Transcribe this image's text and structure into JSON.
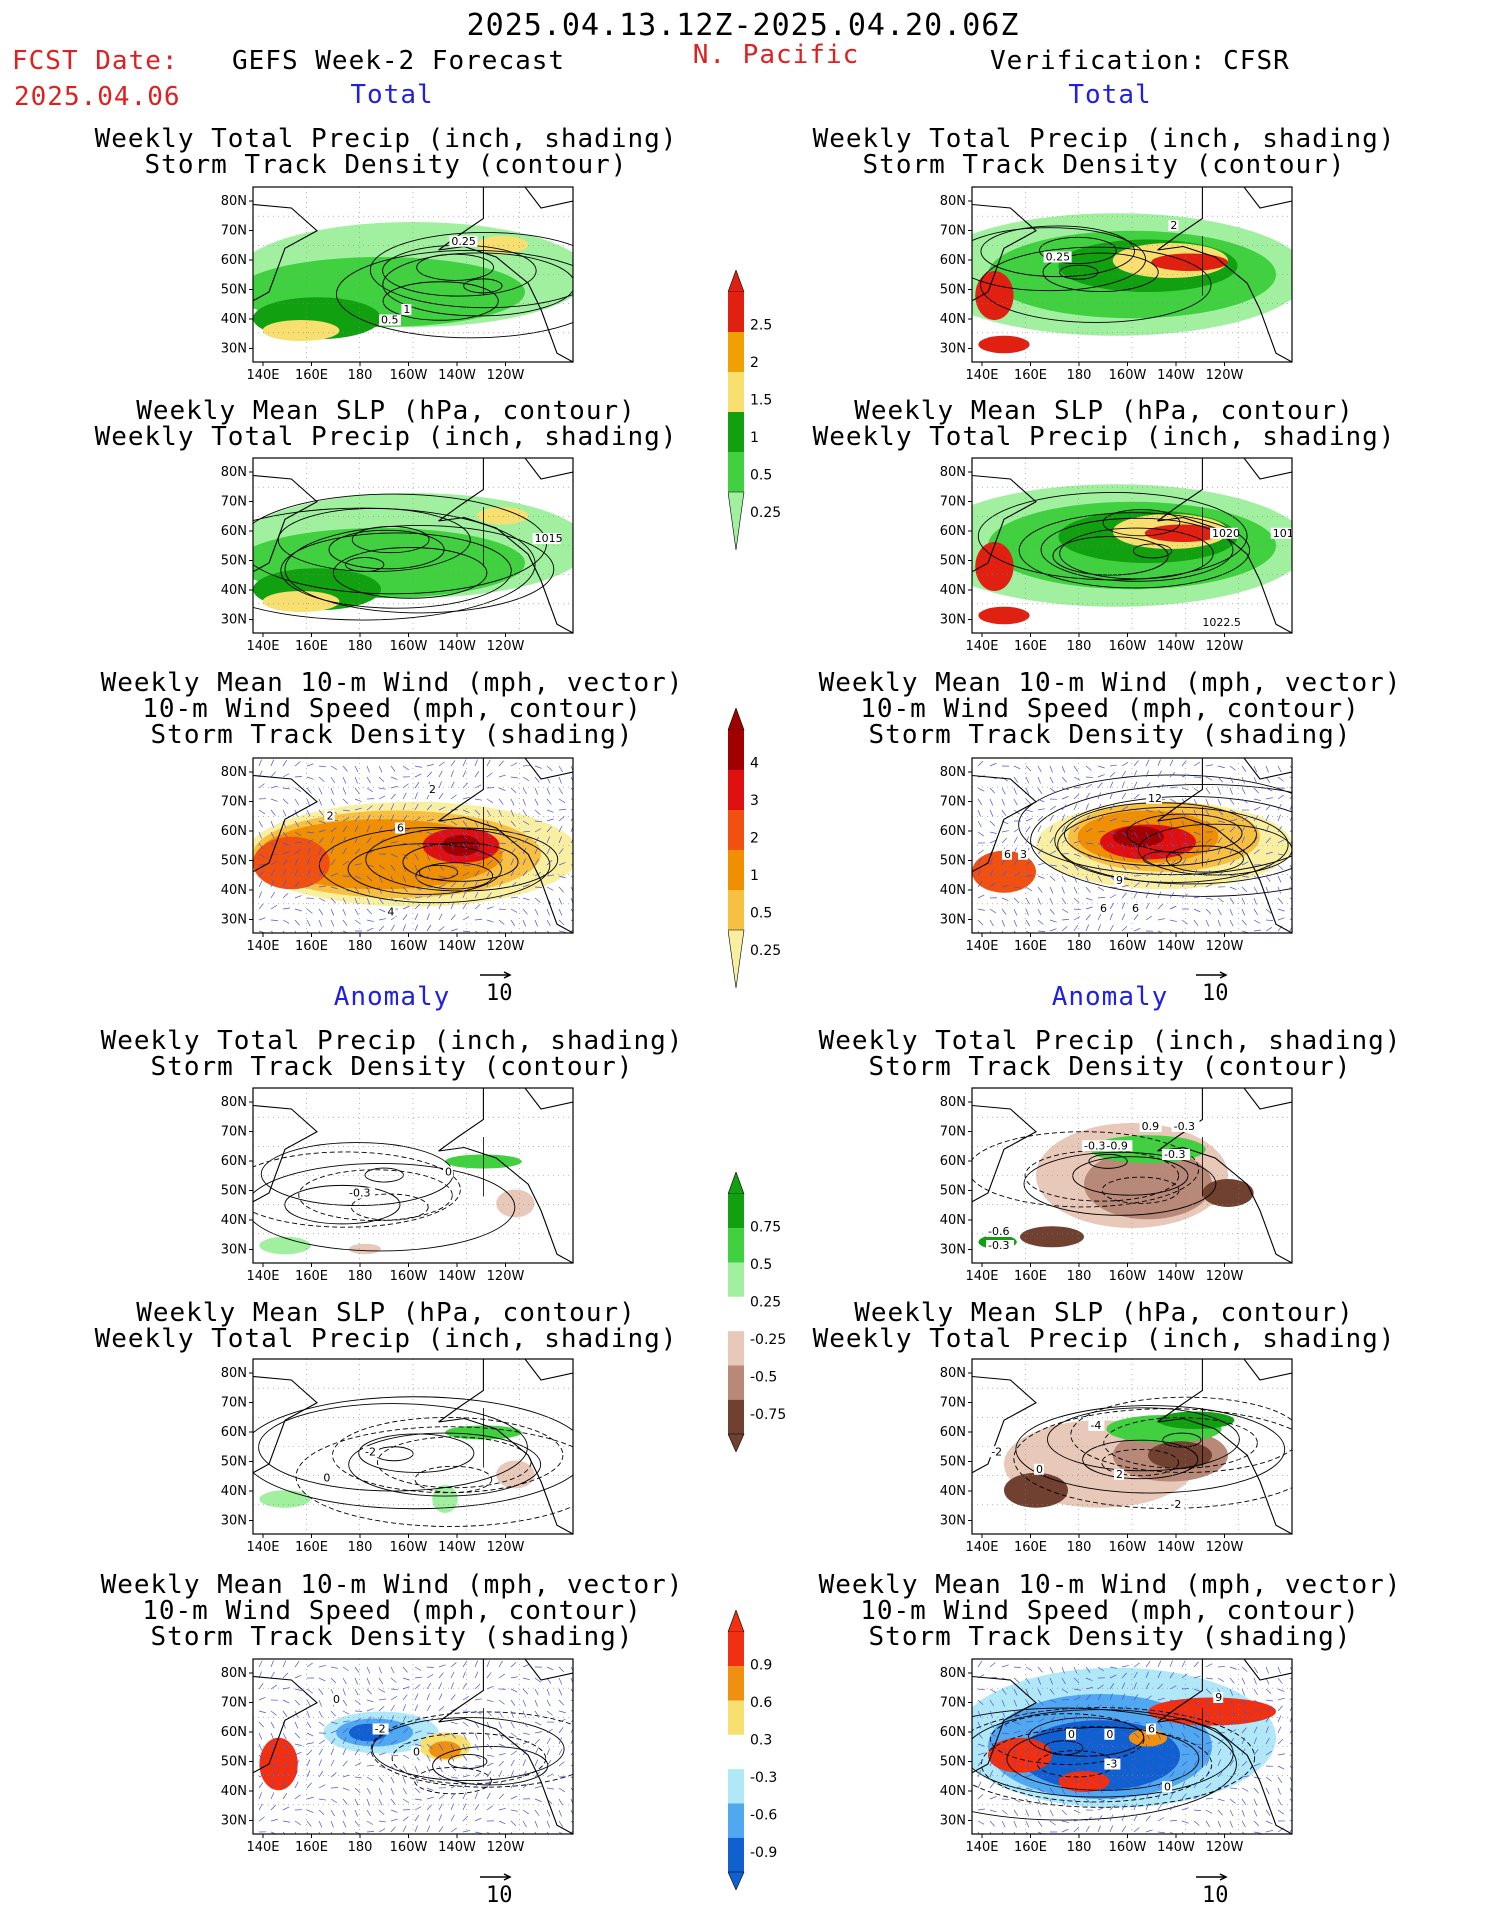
{
  "header": {
    "date_range": "2025.04.13.12Z-2025.04.20.06Z",
    "fcst_label": "FCST Date:",
    "fcst_date": "2025.04.06",
    "left_title": "GEFS Week-2 Forecast",
    "region": "N. Pacific",
    "right_title": "Verification: CFSR"
  },
  "sections": {
    "total": "Total",
    "anomaly": "Anomaly"
  },
  "panel_titles": {
    "precip_storm": [
      "Weekly Total Precip (inch, shading)",
      "Storm Track Density (contour)"
    ],
    "slp_precip": [
      "Weekly Mean SLP (hPa, contour)",
      "Weekly Total Precip (inch, shading)"
    ],
    "wind_storm": [
      "Weekly Mean 10-m Wind (mph, vector)",
      "10-m Wind Speed (mph, contour)",
      "Storm Track Density (shading)"
    ]
  },
  "axes": {
    "lat_labels": [
      "80N",
      "70N",
      "60N",
      "50N",
      "40N",
      "30N"
    ],
    "lon_labels": [
      "140E",
      "160E",
      "180",
      "160W",
      "140W",
      "120W"
    ]
  },
  "vector_ref": "10",
  "colorbars": {
    "total_precip": {
      "labels": [
        "2.5",
        "2",
        "1.5",
        "1",
        "0.5",
        "0.25"
      ],
      "colors": [
        "#e02010",
        "#f0a000",
        "#f8e070",
        "#10a010",
        "#40d040",
        "#a0f0a0"
      ]
    },
    "total_storm": {
      "labels": [
        "4",
        "3",
        "2",
        "1",
        "0.5",
        "0.25"
      ],
      "colors": [
        "#a00000",
        "#e01010",
        "#f05010",
        "#f09000",
        "#f8c040",
        "#f8f0a0"
      ]
    },
    "anom_precip": {
      "labels": [
        "0.75",
        "0.5",
        "0.25",
        "-0.25",
        "-0.5",
        "-0.75"
      ],
      "colors": [
        "#10a010",
        "#40d040",
        "#a0f0a0",
        "#ffffff",
        "#e8c8b8",
        "#b88878",
        "#704030"
      ]
    },
    "anom_storm": {
      "labels": [
        "0.9",
        "0.6",
        "0.3",
        "-0.3",
        "-0.6",
        "-0.9"
      ],
      "colors": [
        "#f03010",
        "#f09010",
        "#f8e070",
        "#ffffff",
        "#b0e8f8",
        "#50a8f0",
        "#1060d0"
      ]
    }
  },
  "contour_labels": {
    "p1": [
      "0.25",
      "0.5",
      "1"
    ],
    "p2": [
      "0.25",
      "2"
    ],
    "p3": [
      "1015"
    ],
    "p4": [
      "1020",
      "1012.5",
      "1022.5"
    ],
    "p5": [
      "2",
      "2",
      "4",
      "6"
    ],
    "p6": [
      "6",
      "3",
      "12",
      "9",
      "6",
      "6"
    ],
    "p7": [
      "-0.3",
      "0"
    ],
    "p8": [
      "-0.3",
      "-0.9",
      "0.9",
      "-0.3",
      "-0.3",
      "-0.6",
      "-0.3"
    ],
    "p9": [
      "0",
      "-2"
    ],
    "p10": [
      "-2",
      "0",
      "-4",
      "2",
      "-2"
    ],
    "p11": [
      "0",
      "-2",
      "0"
    ],
    "p12": [
      "0",
      "0",
      "9",
      "6",
      "-3",
      "0"
    ]
  }
}
